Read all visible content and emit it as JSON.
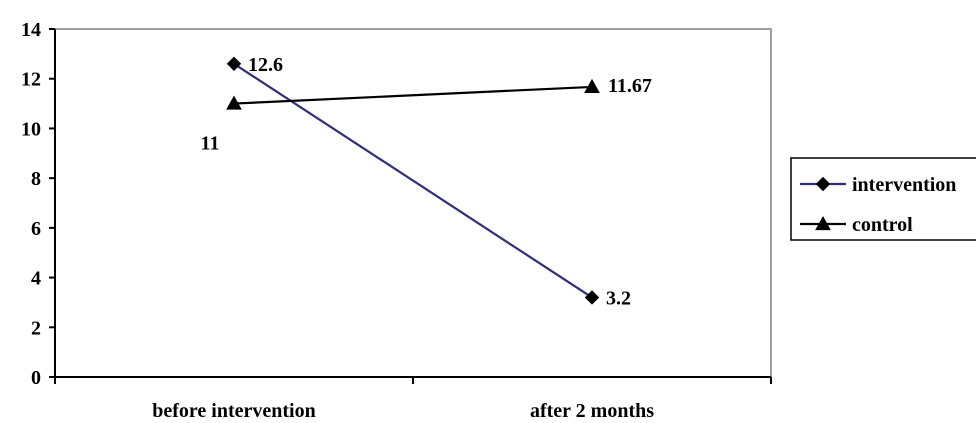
{
  "chart_data": {
    "type": "line",
    "categories": [
      "before intervention",
      "after 2 months"
    ],
    "series": [
      {
        "name": "intervention",
        "values": [
          12.6,
          3.2
        ],
        "labels": [
          "12.6",
          "3.2"
        ],
        "marker": "diamond",
        "color": "#2e2e7a"
      },
      {
        "name": "control",
        "values": [
          11,
          11.67
        ],
        "labels": [
          "11",
          "11.67"
        ],
        "marker": "triangle",
        "color": "#000000"
      }
    ],
    "title": "",
    "xlabel": "",
    "ylabel": "",
    "ylim": [
      0,
      14
    ],
    "yticks": [
      0,
      2,
      4,
      6,
      8,
      10,
      12,
      14
    ],
    "grid": false,
    "legend_position": "right"
  }
}
